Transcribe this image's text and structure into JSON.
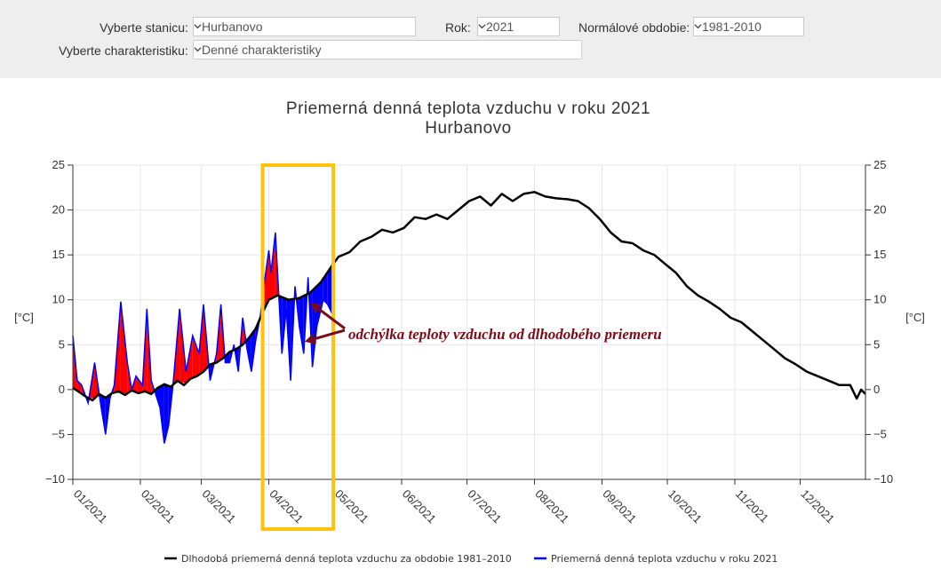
{
  "controls": {
    "station_label": "Vyberte stanicu:",
    "station_value": "Hurbanovo",
    "year_label": "Rok:",
    "year_value": "2021",
    "normal_label": "Normálové obdobie:",
    "normal_value": "1981-2010",
    "char_label": "Vyberte charakteristiku:",
    "char_value": "Denné charakteristiky"
  },
  "colors": {
    "normal_line": "#000000",
    "above_normal": "#ff0000",
    "below_normal": "#0000ff",
    "highlight_box": "#ffc20e",
    "annotation": "#7b0b16"
  },
  "chart_data": {
    "type": "line",
    "title": "Priemerná denná teplota vzduchu v roku 2021",
    "subtitle": "Hurbanovo",
    "ylabel": "[°C]",
    "ylabel_right": "[°C]",
    "ylim": [
      -10,
      25
    ],
    "yticks": [
      "25",
      "20",
      "15",
      "10",
      "5",
      "0",
      "−5",
      "−10"
    ],
    "xticks": [
      "01/2021",
      "02/2021",
      "03/2021",
      "04/2021",
      "05/2021",
      "06/2021",
      "07/2021",
      "08/2021",
      "09/2021",
      "10/2021",
      "11/2021",
      "12/2021"
    ],
    "xlim": [
      "2021-01-01",
      "2021-12-31"
    ],
    "grid": true,
    "legend_position": "bottom",
    "annotation": "odchýlka teploty vzduchu od dlhodobého priemeru",
    "highlight_range": [
      "2021-04-01",
      "2021-05-01"
    ],
    "series": [
      {
        "name": "Dlhodobá priemerná denná teplota vzduchu za obdobie 1981–2010",
        "x": [
          "2021-01-01",
          "2021-01-04",
          "2021-01-07",
          "2021-01-10",
          "2021-01-13",
          "2021-01-16",
          "2021-01-19",
          "2021-01-22",
          "2021-01-25",
          "2021-01-28",
          "2021-01-31",
          "2021-02-03",
          "2021-02-06",
          "2021-02-09",
          "2021-02-12",
          "2021-02-15",
          "2021-02-18",
          "2021-02-21",
          "2021-02-24",
          "2021-02-27",
          "2021-03-02",
          "2021-03-05",
          "2021-03-08",
          "2021-03-11",
          "2021-03-14",
          "2021-03-17",
          "2021-03-20",
          "2021-03-23",
          "2021-03-26",
          "2021-03-29",
          "2021-04-01",
          "2021-04-05",
          "2021-04-10",
          "2021-04-15",
          "2021-04-20",
          "2021-04-25",
          "2021-04-30",
          "2021-05-03",
          "2021-05-08",
          "2021-05-13",
          "2021-05-18",
          "2021-05-23",
          "2021-05-28",
          "2021-06-02",
          "2021-06-07",
          "2021-06-12",
          "2021-06-17",
          "2021-06-22",
          "2021-06-27",
          "2021-07-02",
          "2021-07-07",
          "2021-07-12",
          "2021-07-17",
          "2021-07-22",
          "2021-07-27",
          "2021-08-01",
          "2021-08-06",
          "2021-08-11",
          "2021-08-16",
          "2021-08-21",
          "2021-08-26",
          "2021-08-31",
          "2021-09-05",
          "2021-09-10",
          "2021-09-15",
          "2021-09-20",
          "2021-09-25",
          "2021-09-30",
          "2021-10-05",
          "2021-10-10",
          "2021-10-15",
          "2021-10-20",
          "2021-10-25",
          "2021-10-30",
          "2021-11-04",
          "2021-11-09",
          "2021-11-14",
          "2021-11-19",
          "2021-11-24",
          "2021-11-29",
          "2021-12-04",
          "2021-12-09",
          "2021-12-14",
          "2021-12-19",
          "2021-12-24",
          "2021-12-27",
          "2021-12-29",
          "2021-12-31"
        ],
        "values": [
          0.2,
          -0.3,
          -0.8,
          -1.2,
          -0.5,
          -0.9,
          -0.4,
          -0.2,
          -0.6,
          -0.1,
          -0.4,
          -0.2,
          -0.5,
          0.2,
          0.6,
          0.3,
          1.0,
          0.5,
          1.2,
          1.5,
          2.0,
          2.8,
          3.0,
          3.5,
          4.2,
          4.5,
          5.0,
          5.8,
          6.8,
          8.5,
          10.0,
          10.5,
          10.0,
          10.2,
          10.8,
          12.0,
          13.8,
          14.8,
          15.3,
          16.5,
          17.0,
          17.8,
          17.5,
          18.0,
          19.2,
          19.0,
          19.5,
          19.0,
          20.0,
          21.0,
          21.5,
          20.5,
          21.8,
          21.0,
          21.8,
          22.0,
          21.5,
          21.3,
          21.2,
          21.0,
          20.2,
          19.0,
          17.5,
          16.5,
          16.3,
          15.5,
          15.0,
          14.0,
          13.0,
          11.5,
          10.5,
          9.8,
          9.0,
          8.0,
          7.5,
          6.5,
          5.5,
          4.5,
          3.5,
          2.8,
          2.0,
          1.5,
          1.0,
          0.5,
          0.5,
          -1.0,
          0.0,
          -0.5
        ]
      },
      {
        "name": "Priemerná denná teplota vzduchu v roku 2021",
        "x": [
          "2021-01-01",
          "2021-01-03",
          "2021-01-05",
          "2021-01-08",
          "2021-01-11",
          "2021-01-14",
          "2021-01-16",
          "2021-01-18",
          "2021-01-20",
          "2021-01-23",
          "2021-01-26",
          "2021-01-28",
          "2021-01-30",
          "2021-02-02",
          "2021-02-04",
          "2021-02-06",
          "2021-02-08",
          "2021-02-10",
          "2021-02-12",
          "2021-02-14",
          "2021-02-16",
          "2021-02-19",
          "2021-02-22",
          "2021-02-25",
          "2021-02-28",
          "2021-03-02",
          "2021-03-05",
          "2021-03-08",
          "2021-03-10",
          "2021-03-12",
          "2021-03-14",
          "2021-03-16",
          "2021-03-18",
          "2021-03-20",
          "2021-03-22",
          "2021-03-24",
          "2021-03-26",
          "2021-03-28",
          "2021-03-30",
          "2021-04-01",
          "2021-04-02",
          "2021-04-04",
          "2021-04-07",
          "2021-04-09",
          "2021-04-11",
          "2021-04-13",
          "2021-04-15",
          "2021-04-17",
          "2021-04-19",
          "2021-04-21",
          "2021-04-23",
          "2021-04-26",
          "2021-04-28",
          "2021-04-30"
        ],
        "values": [
          6.0,
          1.0,
          0.5,
          -1.5,
          3.0,
          -2.0,
          -5.0,
          -1.0,
          0.5,
          9.8,
          3.0,
          0.0,
          1.5,
          0.5,
          9.0,
          1.0,
          -0.5,
          -2.0,
          -6.0,
          -4.0,
          0.5,
          9.0,
          2.0,
          6.0,
          4.0,
          9.5,
          1.0,
          4.0,
          9.5,
          3.0,
          3.0,
          5.0,
          2.0,
          8.0,
          4.5,
          2.0,
          5.5,
          8.0,
          12.0,
          15.5,
          13.0,
          17.5,
          4.0,
          9.0,
          1.0,
          11.5,
          7.0,
          4.0,
          12.5,
          2.5,
          7.0,
          10.0,
          9.5,
          8.5
        ]
      }
    ]
  }
}
